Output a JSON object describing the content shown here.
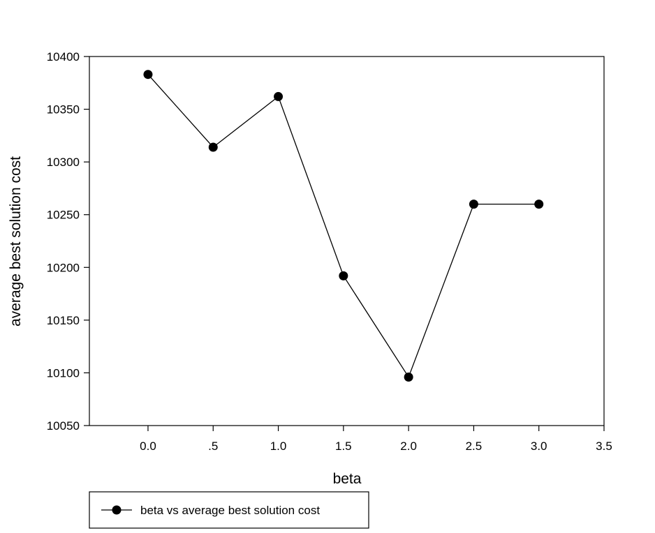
{
  "chart_data": {
    "type": "line",
    "title": "",
    "xlabel": "beta",
    "ylabel": "average best solution cost",
    "x": [
      0.0,
      0.5,
      1.0,
      1.5,
      2.0,
      2.5,
      3.0
    ],
    "series": [
      {
        "name": "beta vs average best solution cost",
        "values": [
          10383,
          10314,
          10362,
          10192,
          10096,
          10260,
          10260
        ]
      }
    ],
    "xlim": [
      -0.45,
      3.5
    ],
    "ylim": [
      10050,
      10400
    ],
    "x_ticks": [
      0.0,
      0.5,
      1.0,
      1.5,
      2.0,
      2.5,
      3.0,
      3.5
    ],
    "x_tick_labels": [
      "0.0",
      ".5",
      "1.0",
      "1.5",
      "2.0",
      "2.5",
      "3.0",
      "3.5"
    ],
    "y_ticks": [
      10050,
      10100,
      10150,
      10200,
      10250,
      10300,
      10350,
      10400
    ],
    "y_tick_labels": [
      "10050",
      "10100",
      "10150",
      "10200",
      "10250",
      "10300",
      "10350",
      "10400"
    ],
    "grid": false,
    "legend_position": "bottom-left",
    "colors": {
      "line": "#000000",
      "marker": "#000000",
      "axes": "#000000",
      "background": "#ffffff"
    }
  }
}
